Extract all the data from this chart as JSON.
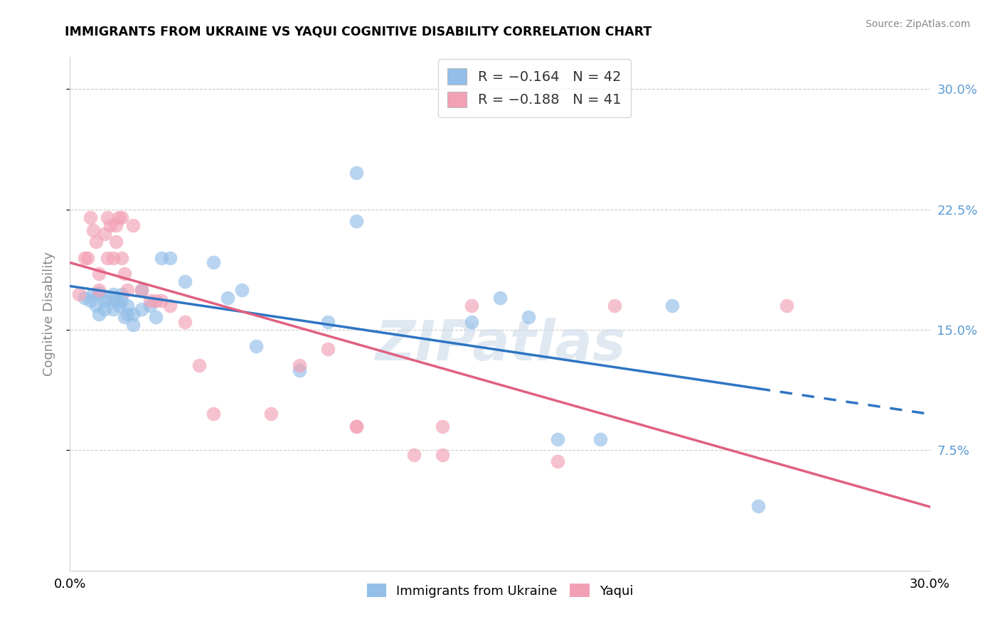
{
  "title": "IMMIGRANTS FROM UKRAINE VS YAQUI COGNITIVE DISABILITY CORRELATION CHART",
  "source": "Source: ZipAtlas.com",
  "ylabel": "Cognitive Disability",
  "xlim": [
    0.0,
    0.3
  ],
  "ylim": [
    0.0,
    0.32
  ],
  "legend_r1": "-0.164",
  "legend_n1": "42",
  "legend_r2": "-0.188",
  "legend_n2": "41",
  "color_ukraine": "#92BEE8",
  "color_yaqui": "#F2A0B5",
  "ukraine_scatter_x": [
    0.005,
    0.007,
    0.008,
    0.009,
    0.01,
    0.01,
    0.012,
    0.012,
    0.013,
    0.015,
    0.015,
    0.016,
    0.017,
    0.018,
    0.018,
    0.019,
    0.02,
    0.02,
    0.022,
    0.022,
    0.025,
    0.025,
    0.028,
    0.03,
    0.032,
    0.035,
    0.04,
    0.05,
    0.055,
    0.06,
    0.065,
    0.08,
    0.09,
    0.1,
    0.1,
    0.14,
    0.15,
    0.16,
    0.17,
    0.185,
    0.21,
    0.24
  ],
  "ukraine_scatter_y": [
    0.17,
    0.168,
    0.172,
    0.165,
    0.173,
    0.16,
    0.168,
    0.163,
    0.17,
    0.172,
    0.163,
    0.168,
    0.165,
    0.172,
    0.168,
    0.158,
    0.165,
    0.16,
    0.16,
    0.153,
    0.175,
    0.163,
    0.165,
    0.158,
    0.195,
    0.195,
    0.18,
    0.192,
    0.17,
    0.175,
    0.14,
    0.125,
    0.155,
    0.218,
    0.248,
    0.155,
    0.17,
    0.158,
    0.082,
    0.082,
    0.165,
    0.04
  ],
  "yaqui_scatter_x": [
    0.003,
    0.005,
    0.006,
    0.007,
    0.008,
    0.009,
    0.01,
    0.01,
    0.012,
    0.013,
    0.013,
    0.014,
    0.015,
    0.016,
    0.016,
    0.017,
    0.018,
    0.018,
    0.019,
    0.02,
    0.022,
    0.025,
    0.028,
    0.03,
    0.032,
    0.035,
    0.04,
    0.045,
    0.05,
    0.07,
    0.08,
    0.09,
    0.1,
    0.1,
    0.12,
    0.13,
    0.13,
    0.14,
    0.17,
    0.19,
    0.25
  ],
  "yaqui_scatter_y": [
    0.172,
    0.195,
    0.195,
    0.22,
    0.212,
    0.205,
    0.175,
    0.185,
    0.21,
    0.22,
    0.195,
    0.215,
    0.195,
    0.215,
    0.205,
    0.22,
    0.22,
    0.195,
    0.185,
    0.175,
    0.215,
    0.175,
    0.168,
    0.168,
    0.168,
    0.165,
    0.155,
    0.128,
    0.098,
    0.098,
    0.128,
    0.138,
    0.09,
    0.09,
    0.072,
    0.072,
    0.09,
    0.165,
    0.068,
    0.165,
    0.165
  ],
  "ytick_vals": [
    0.075,
    0.15,
    0.225,
    0.3
  ],
  "ytick_labels": [
    "7.5%",
    "15.0%",
    "22.5%",
    "30.0%"
  ],
  "xtick_vals": [
    0.0,
    0.05,
    0.1,
    0.15,
    0.2,
    0.25,
    0.3
  ],
  "xtick_labels_show": [
    "0.0%",
    "",
    "",
    "",
    "",
    "",
    "30.0%"
  ]
}
